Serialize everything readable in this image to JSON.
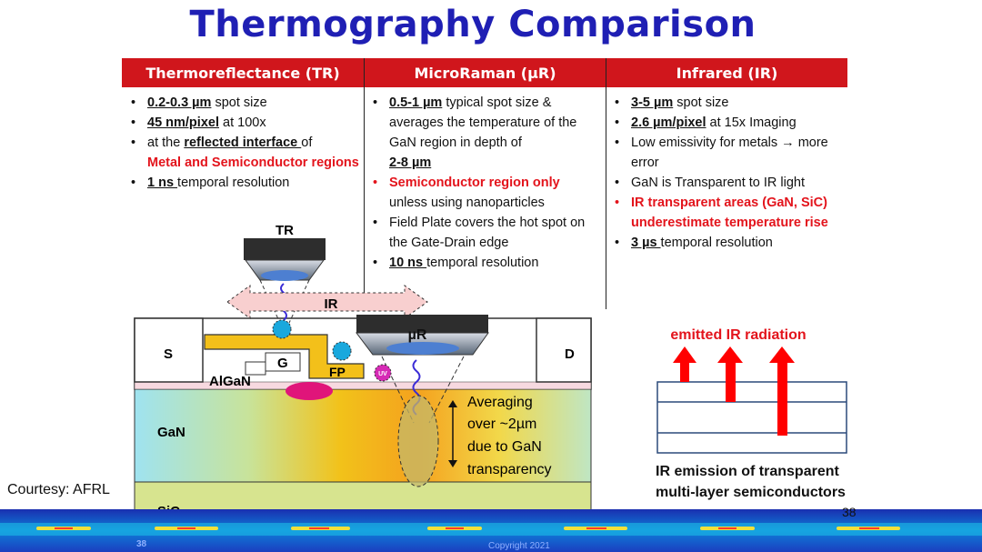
{
  "title": "Thermography Comparison",
  "columns": [
    {
      "header": "Thermoreflectance (TR)",
      "bullets": [
        {
          "b": "0.2-0.3 µm",
          "t": " spot size"
        },
        {
          "b": "45 nm/pixel",
          "t": " at 100x"
        },
        {
          "t1": "at the ",
          "b": "reflected interface ",
          "t": "of",
          "red": "Metal and Semiconductor regions"
        },
        {
          "b": "1 ns ",
          "t": "temporal resolution"
        }
      ]
    },
    {
      "header": "MicroRaman (µR)",
      "bullets": [
        {
          "b": "0.5-1 µm",
          "t": " typical spot size & averages the temperature of the GaN region in depth of",
          "b2": "2-8 µm"
        },
        {
          "red": "Semiconductor region only",
          "t": "unless using nanoparticles"
        },
        {
          "t": "Field Plate covers the hot spot on the Gate-Drain edge"
        },
        {
          "b": "10 ns ",
          "t": "temporal resolution"
        }
      ]
    },
    {
      "header": "Infrared (IR)",
      "bullets": [
        {
          "b": "3-5 µm",
          "t": " spot size"
        },
        {
          "b": "2.6 µm/pixel",
          "t": " at 15x Imaging"
        },
        {
          "t": "Low emissivity for metals → more error"
        },
        {
          "t": "GaN is Transparent to IR light"
        },
        {
          "red": "IR transparent areas (GaN, SiC) underestimate temperature rise"
        },
        {
          "b": "3 µs ",
          "t": "temporal resolution"
        }
      ]
    }
  ],
  "diagram": {
    "tr_label": "TR",
    "ir_label": "IR",
    "ur_label": "µR",
    "s_label": "S",
    "g_label": "G",
    "d_label": "D",
    "fp_label": "FP",
    "uv_label": "UV",
    "algan_label": "AlGaN",
    "gan_label": "GaN",
    "sic_label": "SiC",
    "averaging_lines": [
      "Averaging",
      "over ~2µm",
      "due to GaN",
      "transparency"
    ]
  },
  "ir_emission": {
    "top_label": "emitted IR radiation",
    "caption_line1": "IR emission of transparent",
    "caption_line2": "multi-layer semiconductors"
  },
  "courtesy": "Courtesy: AFRL",
  "page_number": "38",
  "strip_page_number": "38",
  "strip_copyright": "Copyright 2021",
  "colors": {
    "title": "#1f1fb4",
    "header_red": "#d0161c",
    "accent_red": "#e3141c"
  }
}
